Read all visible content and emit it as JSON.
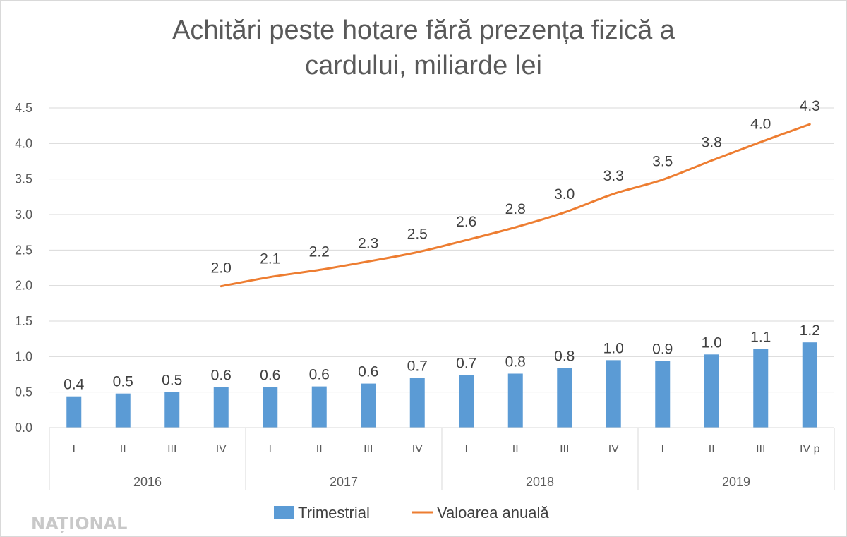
{
  "chart_data": {
    "type": "bar",
    "title_lines": [
      "Achitări peste hotare fără prezența fizică a",
      "cardului, miliarde lei"
    ],
    "yticks": [
      "0.0",
      "0.5",
      "1.0",
      "1.5",
      "2.0",
      "2.5",
      "3.0",
      "3.5",
      "4.0",
      "4.5"
    ],
    "ylim": [
      0,
      4.5
    ],
    "categories": [
      "I",
      "II",
      "III",
      "IV",
      "I",
      "II",
      "III",
      "IV",
      "I",
      "II",
      "III",
      "IV",
      "I",
      "II",
      "III",
      "IV p"
    ],
    "groups": [
      "2016",
      "2017",
      "2018",
      "2019"
    ],
    "series": [
      {
        "name": "Trimestrial",
        "kind": "bar",
        "color": "#5b9bd5",
        "values": [
          0.44,
          0.48,
          0.5,
          0.57,
          0.57,
          0.58,
          0.62,
          0.7,
          0.74,
          0.76,
          0.84,
          0.95,
          0.94,
          1.03,
          1.11,
          1.2
        ],
        "labels": [
          "0.4",
          "0.5",
          "0.5",
          "0.6",
          "0.6",
          "0.6",
          "0.6",
          "0.7",
          "0.7",
          "0.8",
          "0.8",
          "1.0",
          "0.9",
          "1.0",
          "1.1",
          "1.2"
        ]
      },
      {
        "name": "Valoarea anuală",
        "kind": "line",
        "color": "#ed7d31",
        "values": [
          null,
          null,
          null,
          1.99,
          2.12,
          2.22,
          2.34,
          2.47,
          2.64,
          2.82,
          3.03,
          3.29,
          3.49,
          3.76,
          4.02,
          4.27
        ],
        "labels": [
          null,
          null,
          null,
          "2.0",
          "2.1",
          "2.2",
          "2.3",
          "2.5",
          "2.6",
          "2.8",
          "3.0",
          "3.3",
          "3.5",
          "3.8",
          "4.0",
          "4.3"
        ]
      }
    ],
    "legend_position": "bottom",
    "grid": true
  },
  "watermark": {
    "text": "NAȚIONAL",
    "color": "#c8c8c8"
  }
}
